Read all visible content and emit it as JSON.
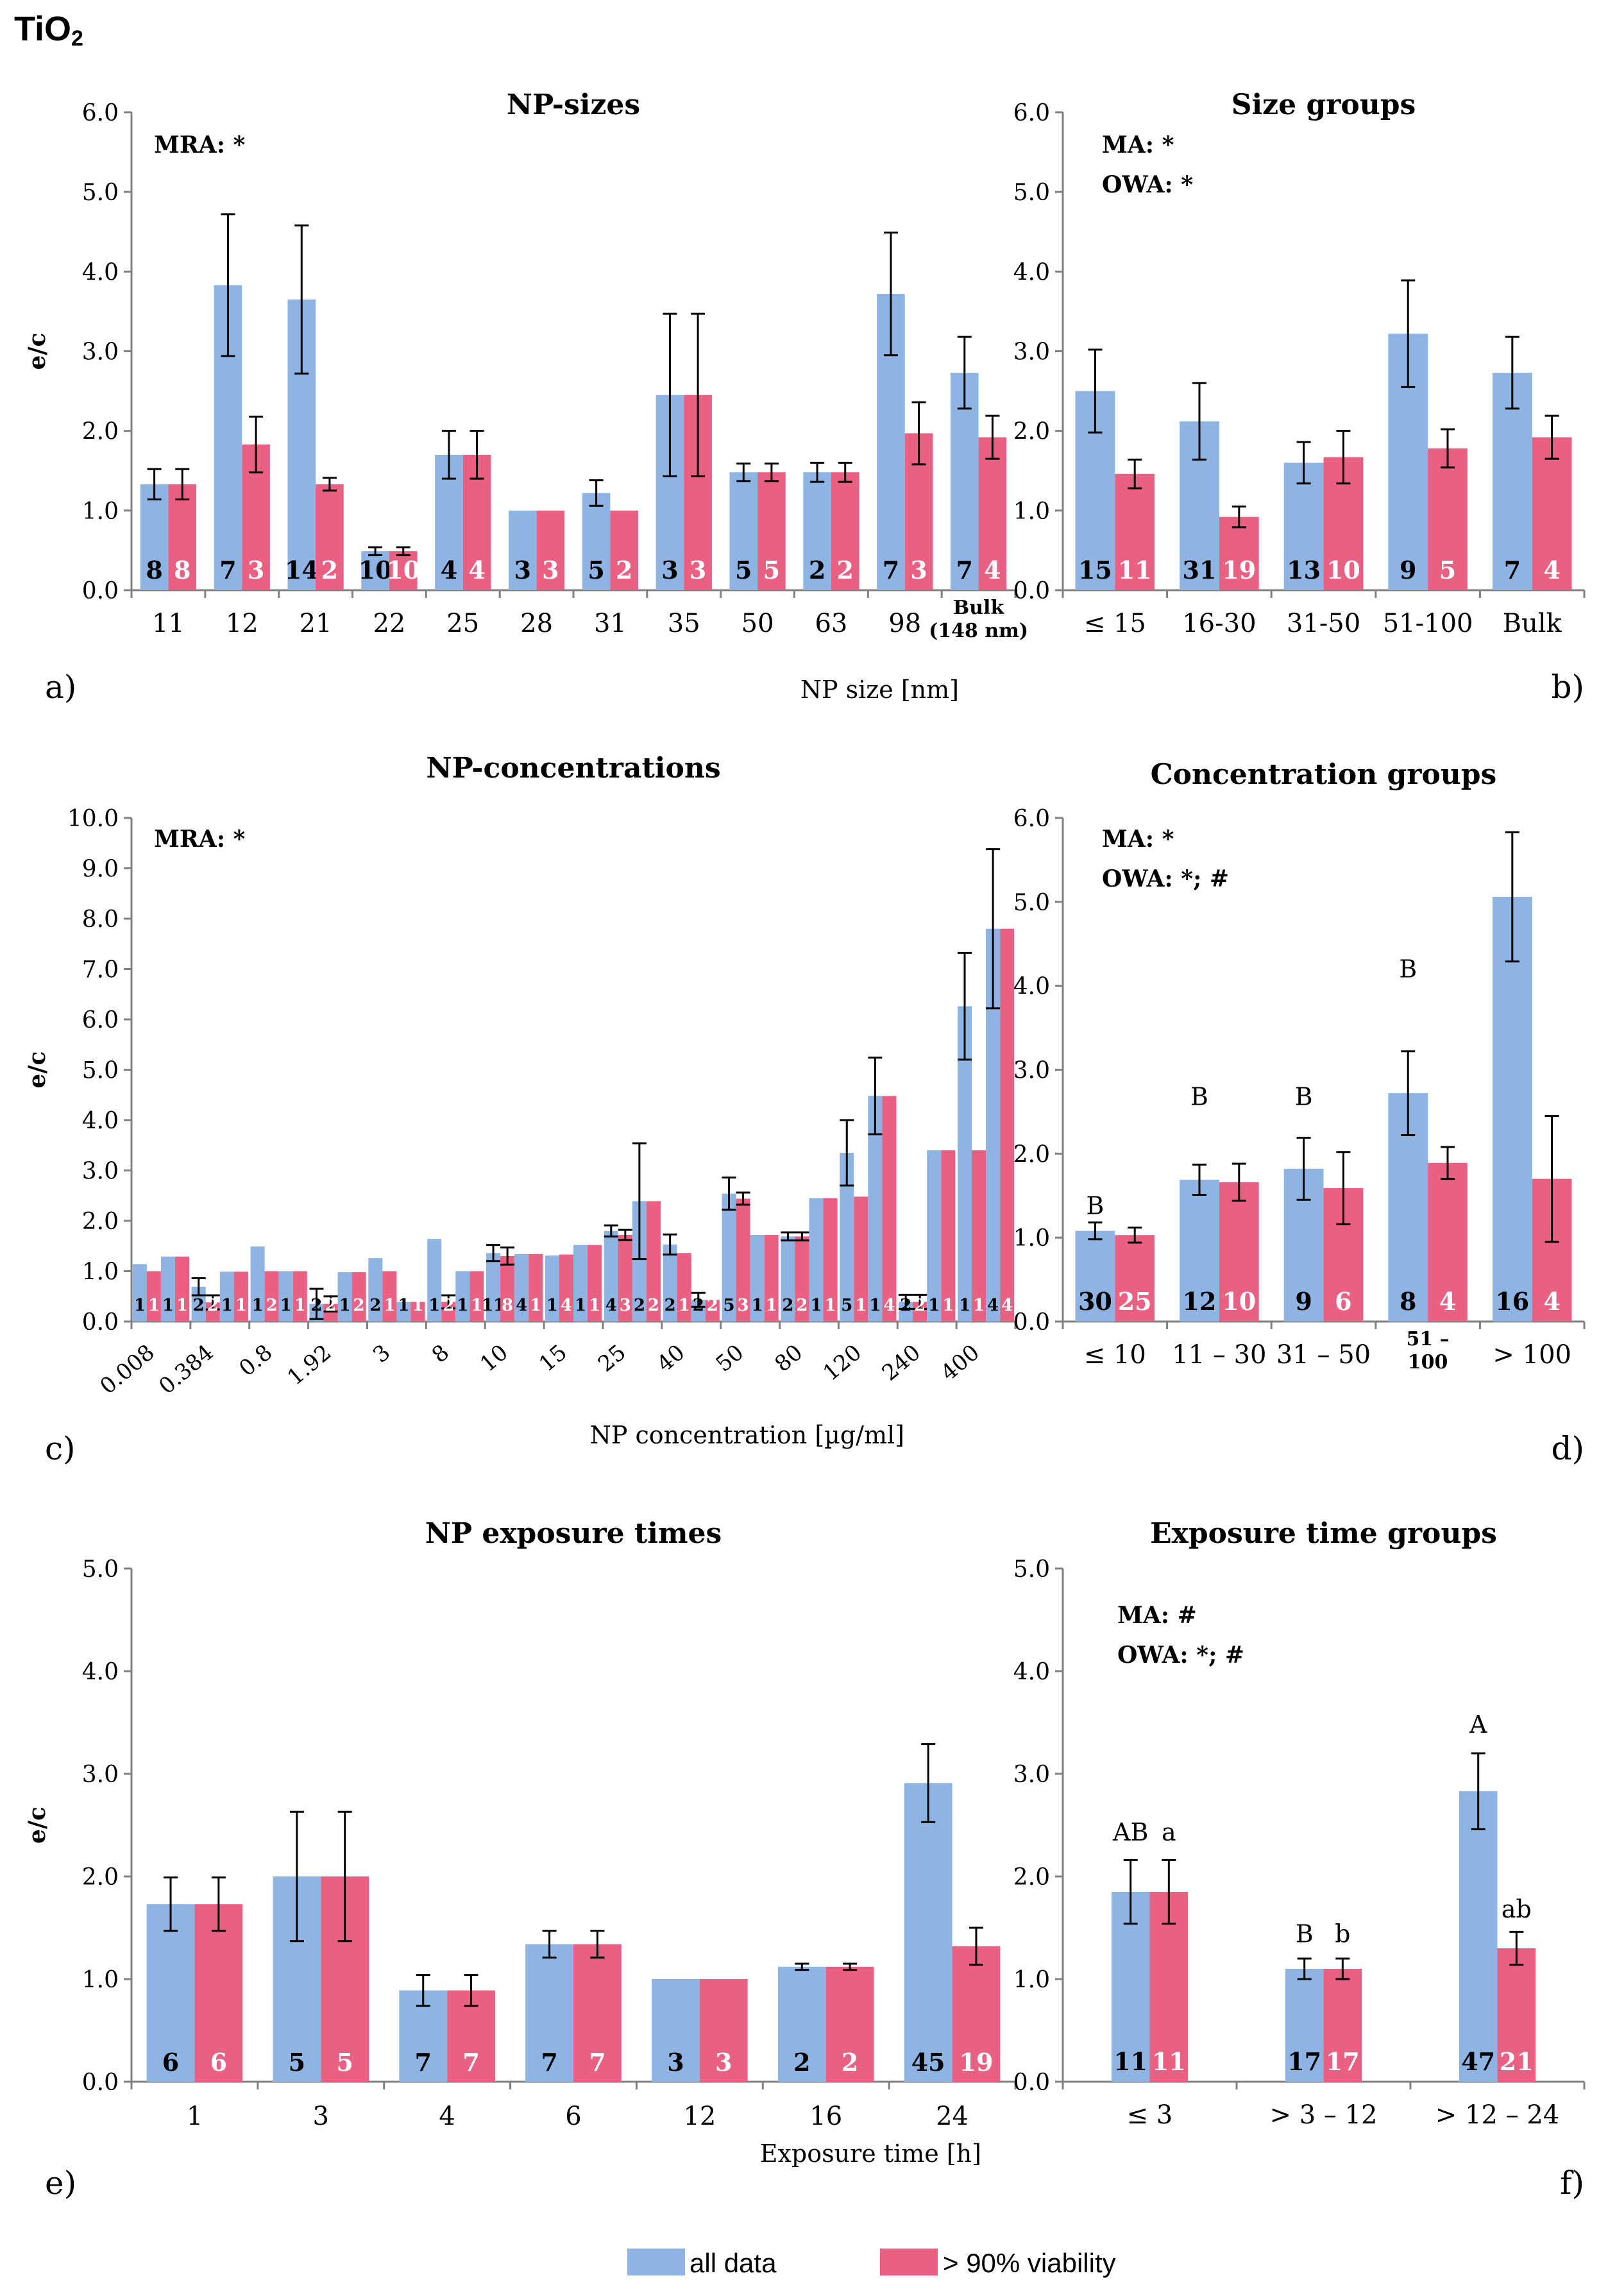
{
  "figure_title_main": "TiO",
  "figure_title_sub": "2",
  "colors": {
    "all": "#8eb4e3",
    "viab": "#ea6082"
  },
  "legend": {
    "all": "all data",
    "viab": "> 90% viability"
  },
  "chart_data": [
    {
      "id": "a",
      "panel_label": "a)",
      "type": "bar",
      "title": "NP-sizes",
      "xlabel": "NP size [nm]",
      "ylabel": "e/c",
      "ylim": [
        0,
        6
      ],
      "yticks": [
        "0.0",
        "1.0",
        "2.0",
        "3.0",
        "4.0",
        "5.0",
        "6.0"
      ],
      "notes": [
        "MRA: *"
      ],
      "categories": [
        "11",
        "12",
        "21",
        "22",
        "25",
        "28",
        "31",
        "35",
        "50",
        "63",
        "98",
        "Bulk|(148 nm)"
      ],
      "series": [
        {
          "name": "all data",
          "values": [
            1.33,
            3.83,
            3.65,
            0.49,
            1.7,
            1.0,
            1.22,
            2.45,
            1.48,
            1.48,
            3.72,
            2.73
          ],
          "err": [
            0.19,
            0.89,
            0.93,
            0.05,
            0.3,
            0,
            0.16,
            1.02,
            0.11,
            0.12,
            0.77,
            0.45
          ],
          "n": [
            "8",
            "7",
            "14",
            "10",
            "4",
            "3",
            "5",
            "3",
            "5",
            "2",
            "7",
            "7"
          ]
        },
        {
          "name": "> 90% viability",
          "values": [
            1.33,
            1.83,
            1.33,
            0.49,
            1.7,
            1.0,
            1.0,
            2.45,
            1.48,
            1.48,
            1.97,
            1.92
          ],
          "err": [
            0.19,
            0.35,
            0.08,
            0.05,
            0.3,
            0,
            0,
            1.02,
            0.11,
            0.12,
            0.39,
            0.27
          ],
          "n": [
            "8",
            "3",
            "2",
            "10",
            "4",
            "3",
            "2",
            "3",
            "5",
            "2",
            "3",
            "4"
          ]
        }
      ],
      "annotations": []
    },
    {
      "id": "b",
      "panel_label": "b)",
      "type": "bar",
      "title": "Size groups",
      "xlabel": "",
      "ylabel": "",
      "ylim": [
        0,
        6
      ],
      "yticks": [
        "0.0",
        "1.0",
        "2.0",
        "3.0",
        "4.0",
        "5.0",
        "6.0"
      ],
      "notes": [
        "MA: *",
        "OWA: *"
      ],
      "categories": [
        "≤ 15",
        "16-30",
        "31-50",
        "51-100",
        "Bulk"
      ],
      "series": [
        {
          "name": "all data",
          "values": [
            2.5,
            2.12,
            1.6,
            3.22,
            2.73
          ],
          "err": [
            0.52,
            0.48,
            0.26,
            0.67,
            0.45
          ],
          "n": [
            "15",
            "31",
            "13",
            "9",
            "7"
          ]
        },
        {
          "name": "> 90% viability",
          "values": [
            1.46,
            0.92,
            1.67,
            1.78,
            1.92
          ],
          "err": [
            0.18,
            0.13,
            0.33,
            0.24,
            0.27
          ],
          "n": [
            "11",
            "19",
            "10",
            "5",
            "4"
          ]
        }
      ],
      "annotations": []
    },
    {
      "id": "c",
      "panel_label": "c)",
      "type": "bar",
      "title": "NP-concentrations",
      "xlabel": "NP concentration [µg/ml]",
      "ylabel": "e/c",
      "ylim": [
        0,
        10
      ],
      "yticks": [
        "0.0",
        "1.0",
        "2.0",
        "3.0",
        "4.0",
        "5.0",
        "6.0",
        "7.0",
        "8.0",
        "9.0",
        "10.0"
      ],
      "notes": [
        "MRA: *"
      ],
      "categories": [
        "0.008",
        "0.384",
        "0.8",
        "1.92",
        "3",
        "8",
        "10",
        "15",
        "25",
        "40",
        "50",
        "80",
        "120",
        "240",
        "400"
      ],
      "extra_categories": [
        "",
        "",
        "",
        "",
        "",
        "",
        "",
        "",
        "",
        "",
        "",
        "",
        "",
        "",
        ""
      ],
      "series": [
        {
          "name": "all data",
          "values": [
            1.14,
            0.69,
            1.49,
            0.35,
            1.26,
            1.64,
            1.36,
            1.31,
            1.8,
            1.53,
            2.54,
            1.69,
            3.35,
            0.39,
            6.26
          ],
          "err": [
            0,
            0.17,
            0,
            0.3,
            0,
            0,
            0.16,
            0,
            0.11,
            0.2,
            0.32,
            0.08,
            0.65,
            0.14,
            1.06
          ],
          "n": [
            "1",
            "2",
            "1",
            "2",
            "2",
            "1",
            "11",
            "1",
            "4",
            "2",
            "5",
            "2",
            "5",
            "2",
            "1"
          ]
        },
        {
          "name": "> 90% viability",
          "values": [
            1.0,
            0.38,
            1.0,
            0.35,
            1.0,
            0.39,
            1.3,
            1.33,
            1.72,
            1.36,
            2.44,
            1.69,
            2.48,
            0.39,
            3.4
          ],
          "err": [
            0,
            0.14,
            0,
            0.15,
            0,
            0.13,
            0.17,
            0,
            0.1,
            0,
            0.12,
            0.08,
            0,
            0.14,
            0
          ],
          "n": [
            "1",
            "2",
            "2",
            "2",
            "1",
            "2",
            "8",
            "4",
            "3",
            "1",
            "3",
            "2",
            "1",
            "2",
            "1"
          ]
        },
        {
          "name": "all data (2nd)",
          "values": [
            1.29,
            0.99,
            1.0,
            0.98,
            0.39,
            1.0,
            1.34,
            1.52,
            2.39,
            0.43,
            1.72,
            2.45,
            4.48,
            3.4,
            7.8
          ],
          "err": [
            0,
            0,
            0,
            0,
            0,
            0,
            0,
            0,
            1.15,
            0.14,
            0,
            0,
            0.76,
            0,
            1.58
          ],
          "n": [
            "1",
            "1",
            "1",
            "1",
            "1",
            "1",
            "4",
            "1",
            "2",
            "2",
            "1",
            "1",
            "1",
            "1",
            "4"
          ]
        },
        {
          "name": "> 90% viability (2nd)",
          "values": [
            1.29,
            0.99,
            1.0,
            0.98,
            0.39,
            1.0,
            1.34,
            1.52,
            2.39,
            0.43,
            1.72,
            2.45,
            4.48,
            3.4,
            7.8
          ],
          "err": [
            0,
            0,
            0,
            0,
            0,
            0,
            0,
            0,
            0,
            0,
            0,
            0,
            0,
            0,
            0
          ],
          "n": [
            "1",
            "1",
            "1",
            "2",
            "1",
            "1",
            "1",
            "1",
            "2",
            "2",
            "1",
            "1",
            "4",
            "1",
            "4"
          ]
        }
      ],
      "annotations": []
    },
    {
      "id": "d",
      "panel_label": "d)",
      "type": "bar",
      "title": "Concentration groups",
      "xlabel": "",
      "ylabel": "",
      "ylim": [
        0,
        6
      ],
      "yticks": [
        "0.0",
        "1.0",
        "2.0",
        "3.0",
        "4.0",
        "5.0",
        "6.0"
      ],
      "notes": [
        "MA: *",
        "OWA: *; #"
      ],
      "categories": [
        "≤ 10",
        "11 – 30",
        "31 – 50",
        "51 –|100",
        "> 100"
      ],
      "series": [
        {
          "name": "all data",
          "values": [
            1.08,
            1.69,
            1.82,
            2.72,
            5.06
          ],
          "err": [
            0.1,
            0.18,
            0.37,
            0.5,
            0.77
          ],
          "n": [
            "30",
            "12",
            "9",
            "8",
            "16"
          ]
        },
        {
          "name": "> 90% viability",
          "values": [
            1.03,
            1.66,
            1.59,
            1.89,
            1.7
          ],
          "err": [
            0.09,
            0.22,
            0.43,
            0.19,
            0.75
          ],
          "n": [
            "25",
            "10",
            "6",
            "4",
            "4"
          ]
        }
      ],
      "annotations": [
        {
          "cat": 0,
          "series": 0,
          "y": 1.28,
          "text": "B"
        },
        {
          "cat": 1,
          "series": 0,
          "y": 2.58,
          "text": "B"
        },
        {
          "cat": 2,
          "series": 0,
          "y": 2.58,
          "text": "B"
        },
        {
          "cat": 3,
          "series": 0,
          "y": 4.1,
          "text": "B"
        }
      ]
    },
    {
      "id": "e",
      "panel_label": "e)",
      "type": "bar",
      "title": "NP exposure times",
      "xlabel": "Exposure time [h]",
      "ylabel": "e/c",
      "ylim": [
        0,
        5
      ],
      "yticks": [
        "0.0",
        "1.0",
        "2.0",
        "3.0",
        "4.0",
        "5.0"
      ],
      "notes": [],
      "categories": [
        "1",
        "3",
        "4",
        "6",
        "12",
        "16",
        "24"
      ],
      "series": [
        {
          "name": "all data",
          "values": [
            1.73,
            2.0,
            0.89,
            1.34,
            1.0,
            1.12,
            2.91
          ],
          "err": [
            0.26,
            0.63,
            0.15,
            0.13,
            0,
            0.03,
            0.38
          ],
          "n": [
            "6",
            "5",
            "7",
            "7",
            "3",
            "2",
            "45"
          ]
        },
        {
          "name": "> 90% viability",
          "values": [
            1.73,
            2.0,
            0.89,
            1.34,
            1.0,
            1.12,
            1.32
          ],
          "err": [
            0.26,
            0.63,
            0.15,
            0.13,
            0,
            0.03,
            0.18
          ],
          "n": [
            "6",
            "5",
            "7",
            "7",
            "3",
            "2",
            "19"
          ]
        }
      ],
      "annotations": []
    },
    {
      "id": "f",
      "panel_label": "f)",
      "type": "bar",
      "title": "Exposure time groups",
      "xlabel": "",
      "ylabel": "",
      "ylim": [
        0,
        5
      ],
      "yticks": [
        "0.0",
        "1.0",
        "2.0",
        "3.0",
        "4.0",
        "5.0"
      ],
      "notes": [
        "MA: #",
        "OWA: *; #"
      ],
      "categories": [
        "≤ 3",
        "> 3 – 12",
        "> 12 – 24"
      ],
      "series": [
        {
          "name": "all data",
          "values": [
            1.85,
            1.1,
            2.83
          ],
          "err": [
            0.31,
            0.1,
            0.37
          ],
          "n": [
            "11",
            "17",
            "47"
          ]
        },
        {
          "name": "> 90% viability",
          "values": [
            1.85,
            1.1,
            1.3
          ],
          "err": [
            0.31,
            0.1,
            0.16
          ],
          "n": [
            "11",
            "17",
            "21"
          ]
        }
      ],
      "annotations": [
        {
          "cat": 0,
          "series": 0,
          "y": 2.35,
          "text": "AB"
        },
        {
          "cat": 0,
          "series": 1,
          "y": 2.35,
          "text": "a"
        },
        {
          "cat": 1,
          "series": 0,
          "y": 1.36,
          "text": "B"
        },
        {
          "cat": 1,
          "series": 1,
          "y": 1.36,
          "text": "b"
        },
        {
          "cat": 2,
          "series": 0,
          "y": 3.4,
          "text": "A"
        },
        {
          "cat": 2,
          "series": 1,
          "y": 1.6,
          "text": "ab"
        }
      ]
    }
  ]
}
